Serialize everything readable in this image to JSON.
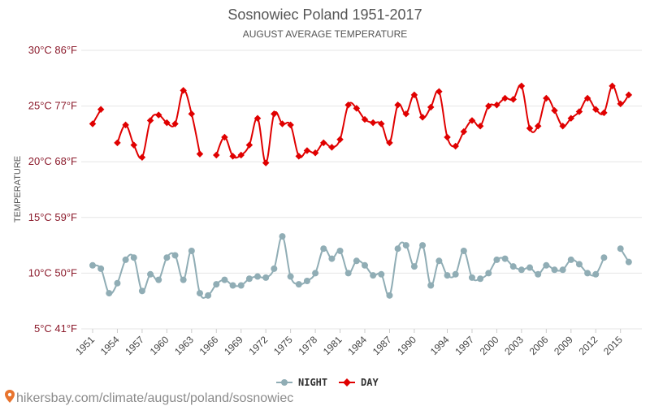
{
  "chart_data": {
    "type": "line",
    "title": "Sosnowiec Poland 1951-2017",
    "subtitle": "AUGUST AVERAGE TEMPERATURE",
    "ylabel": "TEMPERATURE",
    "ylim": [
      5,
      30
    ],
    "xlim": [
      1951,
      2017
    ],
    "y_ticks": [
      {
        "value": 30,
        "label": "30°C 86°F"
      },
      {
        "value": 25,
        "label": "25°C 77°F"
      },
      {
        "value": 20,
        "label": "20°C 68°F"
      },
      {
        "value": 15,
        "label": "15°C 59°F"
      },
      {
        "value": 10,
        "label": "10°C 50°F"
      },
      {
        "value": 5,
        "label": "5°C 41°F"
      }
    ],
    "x_ticks": [
      1951,
      1954,
      1957,
      1960,
      1963,
      1966,
      1969,
      1972,
      1975,
      1978,
      1981,
      1984,
      1987,
      1990,
      1994,
      1997,
      2000,
      2003,
      2006,
      2009,
      2012,
      2015
    ],
    "grid": true,
    "legend_position": "bottom",
    "series": [
      {
        "name": "NIGHT",
        "color": "#90adb5",
        "points": [
          [
            1951,
            10.7
          ],
          [
            1952,
            10.4
          ],
          [
            1953,
            8.2
          ],
          [
            1954,
            9.1
          ],
          [
            1955,
            11.2
          ],
          [
            1956,
            11.4
          ],
          [
            1957,
            8.4
          ],
          [
            1958,
            9.9
          ],
          [
            1959,
            9.4
          ],
          [
            1960,
            11.4
          ],
          [
            1961,
            11.6
          ],
          [
            1962,
            9.4
          ],
          [
            1963,
            12.0
          ],
          [
            1964,
            8.2
          ],
          [
            1965,
            8.0
          ],
          [
            1966,
            9.0
          ],
          [
            1967,
            9.4
          ],
          [
            1968,
            8.9
          ],
          [
            1969,
            8.9
          ],
          [
            1970,
            9.5
          ],
          [
            1971,
            9.7
          ],
          [
            1972,
            9.6
          ],
          [
            1973,
            10.4
          ],
          [
            1974,
            13.3
          ],
          [
            1975,
            9.7
          ],
          [
            1976,
            9.0
          ],
          [
            1977,
            9.3
          ],
          [
            1978,
            10.0
          ],
          [
            1979,
            12.2
          ],
          [
            1980,
            11.3
          ],
          [
            1981,
            12.0
          ],
          [
            1982,
            10.0
          ],
          [
            1983,
            11.1
          ],
          [
            1984,
            10.7
          ],
          [
            1985,
            9.8
          ],
          [
            1986,
            9.9
          ],
          [
            1987,
            8.0
          ],
          [
            1988,
            12.2
          ],
          [
            1989,
            12.5
          ],
          [
            1990,
            10.6
          ],
          [
            1991,
            12.5
          ],
          [
            1992,
            8.9
          ],
          [
            1993,
            11.1
          ],
          [
            1994,
            9.8
          ],
          [
            1995,
            9.9
          ],
          [
            1996,
            12.0
          ],
          [
            1997,
            9.6
          ],
          [
            1998,
            9.5
          ],
          [
            1999,
            10.0
          ],
          [
            2000,
            11.2
          ],
          [
            2001,
            11.3
          ],
          [
            2002,
            10.6
          ],
          [
            2003,
            10.3
          ],
          [
            2004,
            10.5
          ],
          [
            2005,
            9.9
          ],
          [
            2006,
            10.7
          ],
          [
            2007,
            10.3
          ],
          [
            2008,
            10.3
          ],
          [
            2009,
            11.2
          ],
          [
            2010,
            10.8
          ],
          [
            2011,
            10.0
          ],
          [
            2012,
            9.9
          ],
          [
            2013,
            11.4
          ],
          [
            2015,
            12.2
          ],
          [
            2016,
            11.0
          ]
        ]
      },
      {
        "name": "DAY",
        "color": "#e00000",
        "points": [
          [
            1951,
            23.4
          ],
          [
            1952,
            24.7
          ],
          [
            1954,
            21.7
          ],
          [
            1955,
            23.3
          ],
          [
            1956,
            21.5
          ],
          [
            1957,
            20.4
          ],
          [
            1958,
            23.7
          ],
          [
            1959,
            24.2
          ],
          [
            1960,
            23.5
          ],
          [
            1961,
            23.4
          ],
          [
            1962,
            26.4
          ],
          [
            1963,
            24.3
          ],
          [
            1964,
            20.7
          ],
          [
            1966,
            20.6
          ],
          [
            1967,
            22.2
          ],
          [
            1968,
            20.5
          ],
          [
            1969,
            20.6
          ],
          [
            1970,
            21.5
          ],
          [
            1971,
            23.9
          ],
          [
            1972,
            19.9
          ],
          [
            1973,
            24.3
          ],
          [
            1974,
            23.4
          ],
          [
            1975,
            23.3
          ],
          [
            1976,
            20.5
          ],
          [
            1977,
            21.0
          ],
          [
            1978,
            20.8
          ],
          [
            1979,
            21.7
          ],
          [
            1980,
            21.3
          ],
          [
            1981,
            22.0
          ],
          [
            1982,
            25.1
          ],
          [
            1983,
            24.8
          ],
          [
            1984,
            23.8
          ],
          [
            1985,
            23.5
          ],
          [
            1986,
            23.4
          ],
          [
            1987,
            21.7
          ],
          [
            1988,
            25.1
          ],
          [
            1989,
            24.3
          ],
          [
            1990,
            26.0
          ],
          [
            1991,
            24.0
          ],
          [
            1992,
            24.9
          ],
          [
            1993,
            26.3
          ],
          [
            1994,
            22.2
          ],
          [
            1995,
            21.4
          ],
          [
            1996,
            22.7
          ],
          [
            1997,
            23.7
          ],
          [
            1998,
            23.2
          ],
          [
            1999,
            25.0
          ],
          [
            2000,
            25.1
          ],
          [
            2001,
            25.7
          ],
          [
            2002,
            25.6
          ],
          [
            2003,
            26.8
          ],
          [
            2004,
            23.0
          ],
          [
            2005,
            23.2
          ],
          [
            2006,
            25.7
          ],
          [
            2007,
            24.6
          ],
          [
            2008,
            23.2
          ],
          [
            2009,
            23.9
          ],
          [
            2010,
            24.5
          ],
          [
            2011,
            25.7
          ],
          [
            2012,
            24.7
          ],
          [
            2013,
            24.4
          ],
          [
            2014,
            26.8
          ],
          [
            2015,
            25.2
          ],
          [
            2016,
            26.0
          ]
        ]
      }
    ]
  },
  "footer": {
    "url_text": "hikersbay.com/climate/august/poland/sosnowiec",
    "pin_color": "#e8742e"
  }
}
